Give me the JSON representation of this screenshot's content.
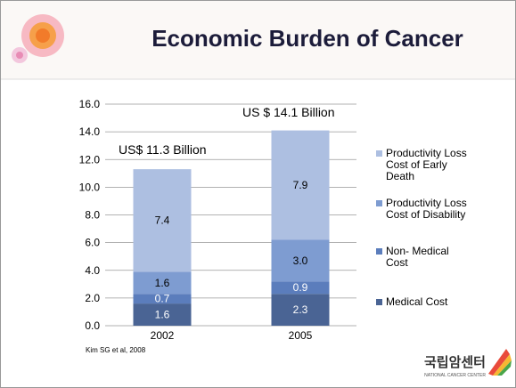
{
  "chart_data": {
    "type": "stacked_bar",
    "title": "Economic Burden of Cancer",
    "categories": [
      "2002",
      "2005"
    ],
    "series": [
      {
        "name": "Medical Cost",
        "color": "#4a6494",
        "values": [
          1.6,
          2.3
        ],
        "value_labels": [
          "1.6",
          "2.3"
        ]
      },
      {
        "name": "Non- Medical Cost",
        "color": "#5b7dbc",
        "values": [
          0.7,
          0.9
        ],
        "value_labels": [
          "0.7",
          "0.9"
        ]
      },
      {
        "name": "Productivity Loss Cost of Disability",
        "color": "#7e9cd1",
        "values": [
          1.6,
          3.0
        ],
        "value_labels": [
          "1.6",
          "3.0"
        ]
      },
      {
        "name": "Productivity Loss Cost of Early Death",
        "color": "#adbfe1",
        "values": [
          7.4,
          7.9
        ],
        "value_labels": [
          "7.4",
          "7.9"
        ]
      }
    ],
    "ylim": [
      0,
      16
    ],
    "yticks": [
      {
        "value": 0,
        "label": "0.0"
      },
      {
        "value": 2,
        "label": "2.0"
      },
      {
        "value": 4,
        "label": "4.0"
      },
      {
        "value": 6,
        "label": "6.0"
      },
      {
        "value": 8,
        "label": "8.0"
      },
      {
        "value": 10,
        "label": "10.0"
      },
      {
        "value": 12,
        "label": "12.0"
      },
      {
        "value": 14,
        "label": "14.0"
      },
      {
        "value": 16,
        "label": "16.0"
      }
    ],
    "grid": true,
    "annotations": [
      "US$ 11.3 Billion",
      "US $ 14.1 Billion"
    ],
    "source": "Kim SG et al, 2008"
  },
  "logo": {
    "name": "국립암센터",
    "subtitle": "NATIONAL CANCER CENTER"
  }
}
